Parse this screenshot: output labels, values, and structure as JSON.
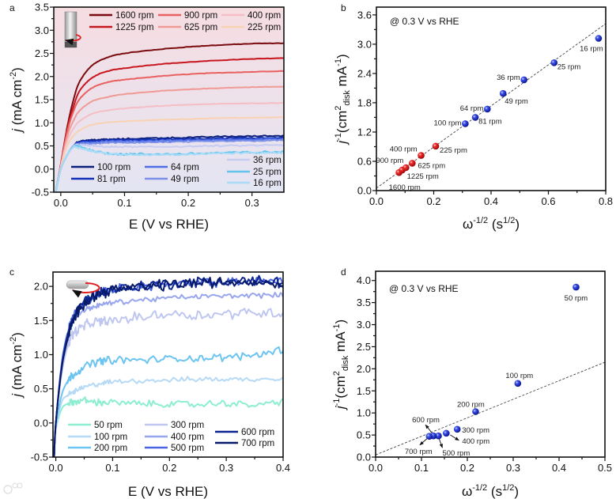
{
  "figure": {
    "panel_letters": [
      "a",
      "b",
      "c",
      "d"
    ],
    "watermark": "大数跨境"
  },
  "chart_data": [
    {
      "panel": "a",
      "type": "line",
      "xlabel": [
        [
          "E (V vs RHE)",
          ""
        ]
      ],
      "ylabel": [
        [
          "j",
          "i"
        ],
        [
          " (mA cm",
          ""
        ],
        [
          "-2",
          "sup"
        ],
        [
          ")",
          ""
        ]
      ],
      "xlim": [
        -0.011,
        0.35
      ],
      "ylim": [
        -0.5,
        3.5
      ],
      "xticks": [
        0,
        0.1,
        0.2,
        0.3
      ],
      "xtick_labels": [
        "0.0",
        "0.1",
        "0.2",
        "0.3"
      ],
      "yticks": [
        -0.5,
        0,
        0.5,
        1,
        1.5,
        2,
        2.5,
        3,
        3.5
      ],
      "ytick_labels": [
        "-0.5",
        "0.0",
        "0.5",
        "1.0",
        "1.5",
        "2.0",
        "2.5",
        "3.0",
        "3.5"
      ],
      "background": [
        "#f6dde2",
        "#e4e5f3"
      ],
      "icon": "rotating-disk-electrode-icon",
      "legend": "top (red) and bottom (blue)",
      "x": [
        -0.008,
        0,
        0.01,
        0.02,
        0.03,
        0.05,
        0.075,
        0.1,
        0.15,
        0.2,
        0.25,
        0.3,
        0.35
      ],
      "series": [
        {
          "name": "1600 rpm",
          "color": "#7a0b0e",
          "noise": 0.004,
          "values": [
            -0.5,
            0.1,
            0.9,
            1.5,
            1.9,
            2.25,
            2.42,
            2.5,
            2.58,
            2.64,
            2.68,
            2.71,
            2.72
          ]
        },
        {
          "name": "1225 rpm",
          "color": "#c8161e",
          "noise": 0.004,
          "values": [
            -0.5,
            0.1,
            0.85,
            1.35,
            1.7,
            1.98,
            2.12,
            2.18,
            2.26,
            2.31,
            2.35,
            2.38,
            2.4
          ]
        },
        {
          "name": "900 rpm",
          "color": "#e8605f",
          "noise": 0.004,
          "values": [
            -0.5,
            0.08,
            0.8,
            1.25,
            1.52,
            1.76,
            1.88,
            1.93,
            2.0,
            2.05,
            2.08,
            2.1,
            2.12
          ]
        },
        {
          "name": "625 rpm",
          "color": "#f09a96",
          "noise": 0.004,
          "values": [
            -0.5,
            0.06,
            0.7,
            1.05,
            1.27,
            1.47,
            1.56,
            1.62,
            1.68,
            1.72,
            1.75,
            1.77,
            1.78
          ]
        },
        {
          "name": "400 rpm",
          "color": "#f4bec4",
          "noise": 0.004,
          "values": [
            -0.5,
            0.05,
            0.6,
            0.88,
            1.04,
            1.2,
            1.27,
            1.31,
            1.36,
            1.39,
            1.41,
            1.42,
            1.43
          ]
        },
        {
          "name": "225 rpm",
          "color": "#f8d2b2",
          "noise": 0.004,
          "values": [
            -0.5,
            0.04,
            0.5,
            0.72,
            0.84,
            0.96,
            1.01,
            1.03,
            1.06,
            1.08,
            1.1,
            1.11,
            1.12
          ]
        },
        {
          "name": "100 rpm",
          "color": "#0c1f7a",
          "noise": 0.012,
          "values": [
            -0.5,
            0.0,
            0.3,
            0.5,
            0.6,
            0.63,
            0.64,
            0.65,
            0.67,
            0.68,
            0.7,
            0.71,
            0.72
          ]
        },
        {
          "name": "81 rpm",
          "color": "#1330b8",
          "noise": 0.012,
          "values": [
            -0.5,
            0.0,
            0.3,
            0.5,
            0.58,
            0.6,
            0.62,
            0.63,
            0.64,
            0.65,
            0.66,
            0.67,
            0.68
          ]
        },
        {
          "name": "64 rpm",
          "color": "#4f6ee8",
          "noise": 0.012,
          "values": [
            -0.5,
            0.0,
            0.3,
            0.5,
            0.56,
            0.58,
            0.6,
            0.6,
            0.61,
            0.62,
            0.63,
            0.64,
            0.65
          ]
        },
        {
          "name": "49 rpm",
          "color": "#7c90e8",
          "noise": 0.012,
          "values": [
            -0.5,
            0.0,
            0.3,
            0.49,
            0.54,
            0.55,
            0.57,
            0.57,
            0.58,
            0.59,
            0.6,
            0.61,
            0.62
          ]
        },
        {
          "name": "36 rpm",
          "color": "#c6cbf2",
          "noise": 0.014,
          "values": [
            -0.5,
            0.0,
            0.3,
            0.49,
            0.52,
            0.5,
            0.48,
            0.48,
            0.48,
            0.49,
            0.5,
            0.51,
            0.52
          ]
        },
        {
          "name": "25 rpm",
          "color": "#63c3ec",
          "noise": 0.02,
          "values": [
            -0.5,
            0.0,
            0.3,
            0.48,
            0.48,
            0.4,
            0.34,
            0.32,
            0.32,
            0.33,
            0.35,
            0.36,
            0.37
          ]
        },
        {
          "name": "16 rpm",
          "color": "#a8dcf6",
          "noise": 0.018,
          "values": [
            -0.5,
            0.0,
            0.3,
            0.47,
            0.46,
            0.39,
            0.33,
            0.31,
            0.31,
            0.32,
            0.34,
            0.35,
            0.35
          ]
        }
      ]
    },
    {
      "panel": "b",
      "type": "scatter",
      "xlabel": [
        [
          "ω",
          ""
        ],
        [
          "-1/2",
          "sup"
        ],
        [
          " (s",
          ""
        ],
        [
          "1/2",
          "sup"
        ],
        [
          ")",
          ""
        ]
      ],
      "ylabel": [
        [
          "j",
          "i"
        ],
        [
          "-1",
          "sup"
        ],
        [
          "(cm",
          ""
        ],
        [
          "2",
          "sup"
        ],
        [
          "disk",
          "sub"
        ],
        [
          " mA",
          ""
        ],
        [
          "-1",
          "sup"
        ],
        [
          ")",
          ""
        ]
      ],
      "xlim": [
        0,
        0.8
      ],
      "ylim": [
        0,
        3.76
      ],
      "xticks": [
        0,
        0.2,
        0.4,
        0.6,
        0.8
      ],
      "xtick_labels": [
        "0.0",
        "0.2",
        "0.4",
        "0.6",
        "0.8"
      ],
      "yticks": [
        0,
        0.6,
        1.2,
        1.8,
        2.4,
        3.0,
        3.6
      ],
      "ytick_labels": [
        "0.0",
        "0.6",
        "1.2",
        "1.8",
        "2.4",
        "3.0",
        "3.6"
      ],
      "annotation": "@ 0.3 V vs RHE",
      "fit_line": {
        "x": [
          0,
          0.8
        ],
        "y": [
          0.05,
          3.42
        ]
      },
      "points": [
        {
          "label": "1600 rpm",
          "x": 0.079,
          "y": 0.37,
          "color": "red"
        },
        {
          "label": "1225 rpm",
          "x": 0.09,
          "y": 0.42,
          "color": "red"
        },
        {
          "label": "900 rpm",
          "x": 0.103,
          "y": 0.47,
          "color": "red"
        },
        {
          "label": "625 rpm",
          "x": 0.125,
          "y": 0.56,
          "color": "red"
        },
        {
          "label": "400 rpm",
          "x": 0.156,
          "y": 0.72,
          "color": "red"
        },
        {
          "label": "225 rpm",
          "x": 0.207,
          "y": 0.91,
          "color": "red"
        },
        {
          "label": "100 rpm",
          "x": 0.31,
          "y": 1.37,
          "color": "blue"
        },
        {
          "label": "81 rpm",
          "x": 0.345,
          "y": 1.5,
          "color": "blue"
        },
        {
          "label": "64 rpm",
          "x": 0.387,
          "y": 1.67,
          "color": "blue"
        },
        {
          "label": "49 rpm",
          "x": 0.442,
          "y": 1.99,
          "color": "blue"
        },
        {
          "label": "36 rpm",
          "x": 0.515,
          "y": 2.27,
          "color": "blue"
        },
        {
          "label": "25 rpm",
          "x": 0.62,
          "y": 2.62,
          "color": "blue"
        },
        {
          "label": "16 rpm",
          "x": 0.775,
          "y": 3.12,
          "color": "blue"
        }
      ]
    },
    {
      "panel": "c",
      "type": "line",
      "xlabel": [
        [
          "E (V vs RHE)",
          ""
        ]
      ],
      "ylabel": [
        [
          "j",
          "i"
        ],
        [
          " (mA cm",
          ""
        ],
        [
          "-2",
          "sup"
        ],
        [
          ")",
          ""
        ]
      ],
      "xlim": [
        -0.005,
        0.4
      ],
      "ylim": [
        -0.5,
        2.21
      ],
      "xticks": [
        0,
        0.1,
        0.2,
        0.3,
        0.4
      ],
      "xtick_labels": [
        "0.0",
        "0.1",
        "0.2",
        "0.3",
        "0.4"
      ],
      "yticks": [
        -0.5,
        0,
        0.5,
        1,
        1.5,
        2
      ],
      "ytick_labels": [
        "-0.5",
        "0.0",
        "0.5",
        "1.0",
        "1.5",
        "2.0"
      ],
      "icon": "rotating-stir-bar-icon",
      "legend": "bottom",
      "x": [
        -0.003,
        0,
        0.01,
        0.02,
        0.03,
        0.05,
        0.075,
        0.1,
        0.15,
        0.2,
        0.25,
        0.3,
        0.35,
        0.4
      ],
      "series": [
        {
          "name": "50 rpm",
          "color": "#8eeed2",
          "noise": 0.04,
          "values": [
            -0.5,
            -0.1,
            0.2,
            0.28,
            0.3,
            0.33,
            0.3,
            0.3,
            0.28,
            0.28,
            0.27,
            0.29,
            0.26,
            0.32
          ]
        },
        {
          "name": "100 rpm",
          "color": "#b6daf6",
          "noise": 0.03,
          "values": [
            -0.5,
            -0.1,
            0.3,
            0.4,
            0.45,
            0.52,
            0.57,
            0.6,
            0.62,
            0.63,
            0.64,
            0.64,
            0.64,
            0.66
          ]
        },
        {
          "name": "200 rpm",
          "color": "#6cc4f0",
          "noise": 0.045,
          "values": [
            -0.5,
            -0.05,
            0.4,
            0.6,
            0.7,
            0.82,
            0.9,
            0.92,
            0.92,
            0.94,
            0.95,
            0.96,
            1.0,
            1.08
          ]
        },
        {
          "name": "300 rpm",
          "color": "#bfc7f0",
          "noise": 0.06,
          "values": [
            -0.5,
            0,
            0.7,
            1.1,
            1.3,
            1.42,
            1.48,
            1.5,
            1.55,
            1.6,
            1.58,
            1.6,
            1.62,
            1.6
          ]
        },
        {
          "name": "400 rpm",
          "color": "#98a6ee",
          "noise": 0.03,
          "values": [
            -0.5,
            0,
            0.8,
            1.25,
            1.5,
            1.65,
            1.72,
            1.76,
            1.8,
            1.83,
            1.85,
            1.86,
            1.87,
            1.87
          ]
        },
        {
          "name": "500 rpm",
          "color": "#4a64e0",
          "noise": 0.05,
          "values": [
            -0.5,
            0,
            0.85,
            1.3,
            1.55,
            1.75,
            1.88,
            1.95,
            2.0,
            2.03,
            2.05,
            2.06,
            2.07,
            2.08
          ]
        },
        {
          "name": "600 rpm",
          "color": "#0c2590",
          "noise": 0.065,
          "values": [
            -0.5,
            0,
            0.8,
            1.25,
            1.5,
            1.78,
            1.9,
            1.96,
            2.0,
            2.04,
            2.06,
            2.07,
            2.08,
            2.06
          ]
        },
        {
          "name": "700 rpm",
          "color": "#081a6a",
          "noise": 0.065,
          "values": [
            -0.5,
            0,
            0.78,
            1.2,
            1.48,
            1.76,
            1.88,
            1.95,
            1.99,
            2.03,
            2.05,
            2.06,
            2.07,
            2.02
          ]
        }
      ]
    },
    {
      "panel": "d",
      "type": "scatter",
      "xlabel": [
        [
          "ω",
          ""
        ],
        [
          "-1/2",
          "sup"
        ],
        [
          " (s",
          ""
        ],
        [
          "1/2",
          "sup"
        ],
        [
          ")",
          ""
        ]
      ],
      "ylabel": [
        [
          "j",
          "i"
        ],
        [
          "-1",
          "sup"
        ],
        [
          "(cm",
          ""
        ],
        [
          "2",
          "sup"
        ],
        [
          "disk",
          "sub"
        ],
        [
          " mA",
          ""
        ],
        [
          "-1",
          "sup"
        ],
        [
          ")",
          ""
        ]
      ],
      "xlim": [
        0,
        0.5
      ],
      "ylim": [
        0,
        4.21
      ],
      "xticks": [
        0,
        0.1,
        0.2,
        0.3,
        0.4,
        0.5
      ],
      "xtick_labels": [
        "0.0",
        "0.1",
        "0.2",
        "0.3",
        "0.4",
        "0.5"
      ],
      "yticks": [
        0,
        0.5,
        1,
        1.5,
        2,
        2.5,
        3,
        3.5,
        4
      ],
      "ytick_labels": [
        "0.0",
        "0.5",
        "1.0",
        "1.5",
        "2.0",
        "2.5",
        "3.0",
        "3.5",
        "4.0"
      ],
      "annotation": "@ 0.3 V vs RHE",
      "fit_line": {
        "x": [
          0,
          0.5
        ],
        "y": [
          0.05,
          2.15
        ]
      },
      "points": [
        {
          "label": "50 rpm",
          "x": 0.437,
          "y": 3.85,
          "color": "blue"
        },
        {
          "label": "100 rpm",
          "x": 0.31,
          "y": 1.67,
          "color": "blue"
        },
        {
          "label": "200 rpm",
          "x": 0.218,
          "y": 1.03,
          "color": "blue"
        },
        {
          "label": "300 rpm",
          "x": 0.178,
          "y": 0.63,
          "color": "blue"
        },
        {
          "label": "400 rpm",
          "x": 0.154,
          "y": 0.54,
          "color": "blue"
        },
        {
          "label": "500 rpm",
          "x": 0.137,
          "y": 0.48,
          "color": "blue"
        },
        {
          "label": "600 rpm",
          "x": 0.126,
          "y": 0.48,
          "color": "blue"
        },
        {
          "label": "700 rpm",
          "x": 0.117,
          "y": 0.47,
          "color": "blue"
        }
      ]
    }
  ]
}
